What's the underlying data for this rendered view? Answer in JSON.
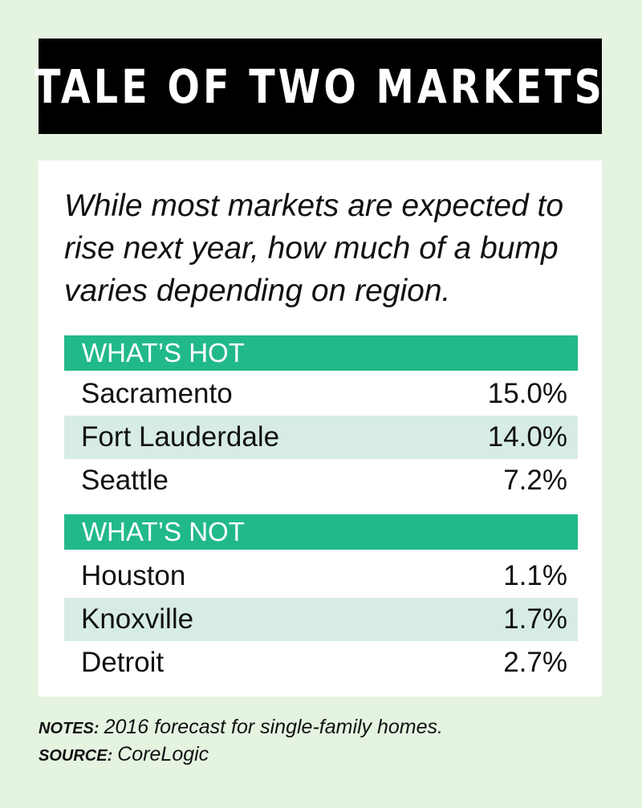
{
  "title": "TALE OF TWO MARKETS",
  "intro": "While most markets are expected to rise next year, how much of a bump varies depending on region.",
  "colors": {
    "background": "#e5f3e1",
    "header_bar": "#000000",
    "section_header": "#22b98a",
    "row_shaded": "#d7ede4",
    "row_plain": "#ffffff"
  },
  "chart_data": {
    "type": "table",
    "title": "TALE OF TWO MARKETS",
    "unit": "%",
    "sections": [
      {
        "label": "WHAT’S HOT",
        "rows": [
          {
            "city": "Sacramento",
            "value": "15.0%"
          },
          {
            "city": "Fort Lauderdale",
            "value": "14.0%"
          },
          {
            "city": "Seattle",
            "value": "7.2%"
          }
        ]
      },
      {
        "label": "WHAT’S NOT",
        "rows": [
          {
            "city": "Houston",
            "value": "1.1%"
          },
          {
            "city": "Knoxville",
            "value": "1.7%"
          },
          {
            "city": "Detroit",
            "value": "2.7%"
          }
        ]
      }
    ]
  },
  "footer": {
    "notes_label": "NOTES:",
    "notes_text": "2016 forecast for single-family homes.",
    "source_label": "SOURCE:",
    "source_text": "CoreLogic"
  }
}
